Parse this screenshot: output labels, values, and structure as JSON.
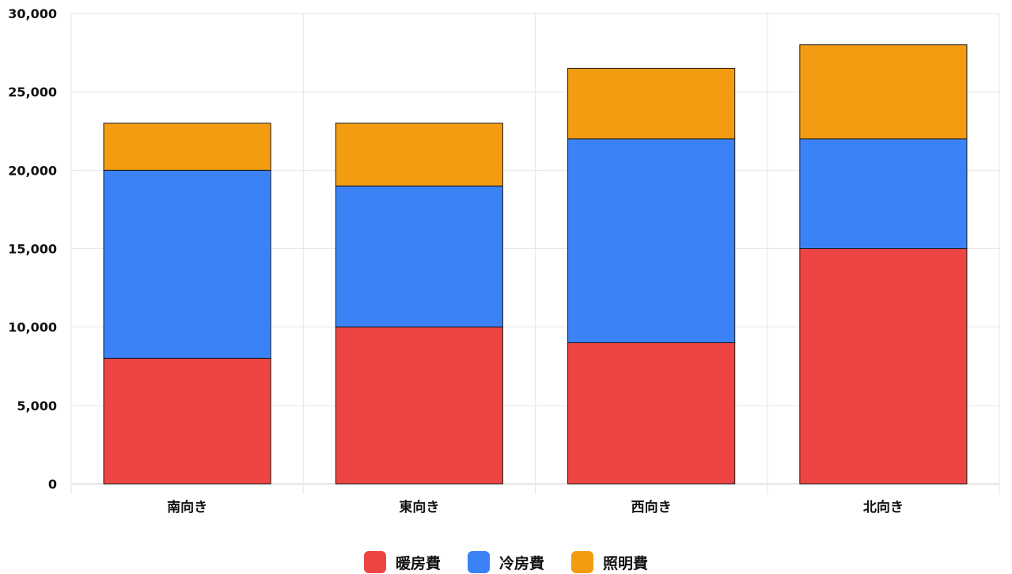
{
  "chart_data": {
    "type": "bar",
    "stacked": true,
    "categories": [
      "南向き",
      "東向き",
      "西向き",
      "北向き"
    ],
    "series": [
      {
        "name": "暖房費",
        "color": "#ef4444",
        "values": [
          8000,
          10000,
          9000,
          15000
        ]
      },
      {
        "name": "冷房費",
        "color": "#3b82f6",
        "values": [
          12000,
          9000,
          13000,
          7000
        ]
      },
      {
        "name": "照明費",
        "color": "#f39c12",
        "values": [
          3000,
          4000,
          4500,
          6000
        ]
      }
    ],
    "ylim": [
      0,
      30000
    ],
    "yticks": [
      "0",
      "5,000",
      "10,000",
      "15,000",
      "20,000",
      "25,000",
      "30,000"
    ],
    "grid": true,
    "legend_position": "bottom"
  }
}
